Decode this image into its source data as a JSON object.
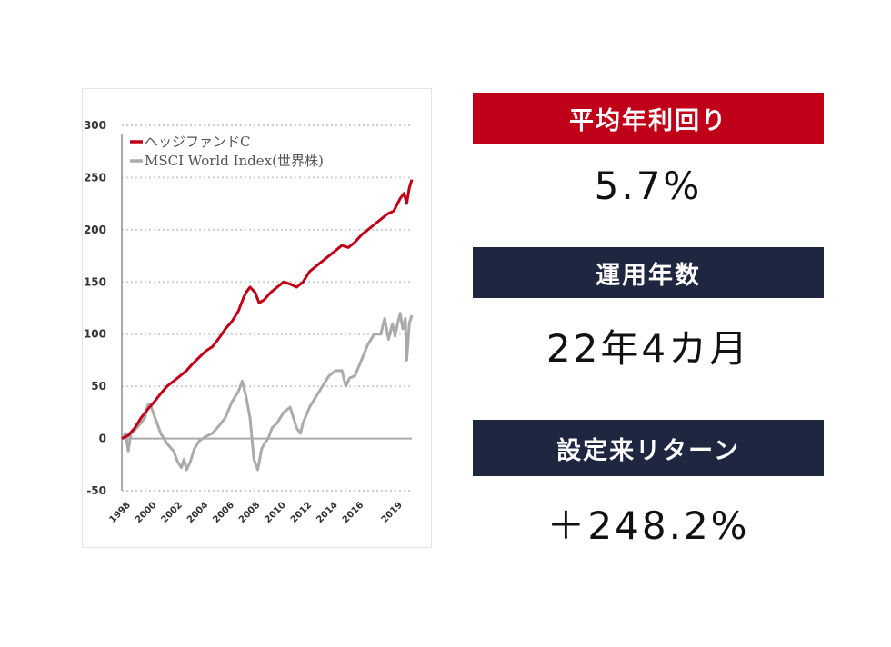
{
  "colors": {
    "accent_red": "#c00018",
    "accent_navy": "#1f2640",
    "series_hedge": "#c00018",
    "series_msci": "#aaaaaa",
    "grid": "#cfcfcf"
  },
  "stats": [
    {
      "label": "平均年利回り",
      "value": "5.7%",
      "color": "#c00018"
    },
    {
      "label": "運用年数",
      "value": "22年4カ月",
      "color": "#1f2640"
    },
    {
      "label": "設定来リターン",
      "value": "＋248.2%",
      "color": "#1f2640"
    }
  ],
  "chart_data": {
    "type": "line",
    "title": "",
    "xlabel": "",
    "ylabel": "",
    "ylim": [
      -50,
      300
    ],
    "yticks": [
      300,
      250,
      200,
      150,
      100,
      50,
      0,
      -50
    ],
    "xlim": [
      1998.0,
      2020.4
    ],
    "xticks": [
      "1998",
      "2000",
      "2002",
      "2004",
      "2006",
      "2008",
      "2010",
      "2012",
      "2014",
      "2016",
      "2019"
    ],
    "xtick_values": [
      1998,
      2000,
      2002,
      2004,
      2006,
      2008,
      2010,
      2012,
      2014,
      2016,
      2019
    ],
    "grid": true,
    "legend": "top-left",
    "series": [
      {
        "name": "ヘッジファンドC",
        "color": "#c00018",
        "x": [
          1998.0,
          1998.5,
          1999.0,
          1999.5,
          2000.0,
          2000.5,
          2001.0,
          2001.5,
          2002.0,
          2002.5,
          2003.0,
          2003.5,
          2004.0,
          2004.5,
          2005.0,
          2005.5,
          2006.0,
          2006.5,
          2007.0,
          2007.4,
          2007.6,
          2007.9,
          2008.3,
          2008.6,
          2009.0,
          2009.5,
          2010.0,
          2010.5,
          2011.0,
          2011.5,
          2012.0,
          2012.5,
          2013.0,
          2013.5,
          2014.0,
          2014.5,
          2015.0,
          2015.5,
          2016.0,
          2016.5,
          2017.0,
          2017.5,
          2018.0,
          2018.5,
          2019.0,
          2019.3,
          2019.5,
          2019.8,
          2020.0,
          2020.2,
          2020.4
        ],
        "values": [
          0,
          3,
          10,
          20,
          28,
          35,
          43,
          50,
          55,
          60,
          65,
          72,
          78,
          84,
          88,
          96,
          105,
          112,
          122,
          135,
          140,
          145,
          140,
          130,
          133,
          140,
          145,
          150,
          148,
          145,
          150,
          160,
          165,
          170,
          175,
          180,
          185,
          183,
          188,
          195,
          200,
          205,
          210,
          215,
          218,
          225,
          230,
          235,
          225,
          240,
          248
        ]
      },
      {
        "name": "MSCI World Index(世界株)",
        "color": "#aaaaaa",
        "x": [
          1998.0,
          1998.3,
          1998.5,
          1998.7,
          1999.0,
          1999.5,
          1999.8,
          2000.0,
          2000.2,
          2000.5,
          2000.8,
          2001.0,
          2001.5,
          2002.0,
          2002.3,
          2002.6,
          2002.8,
          2003.0,
          2003.3,
          2003.6,
          2004.0,
          2004.5,
          2005.0,
          2005.5,
          2006.0,
          2006.5,
          2007.0,
          2007.3,
          2007.6,
          2007.9,
          2008.2,
          2008.5,
          2008.8,
          2009.0,
          2009.3,
          2009.6,
          2010.0,
          2010.5,
          2011.0,
          2011.5,
          2011.8,
          2012.0,
          2012.5,
          2013.0,
          2013.5,
          2014.0,
          2014.5,
          2015.0,
          2015.3,
          2015.6,
          2016.0,
          2016.5,
          2017.0,
          2017.5,
          2018.0,
          2018.3,
          2018.6,
          2018.9,
          2019.1,
          2019.3,
          2019.5,
          2019.7,
          2019.9,
          2020.0,
          2020.1,
          2020.2,
          2020.4
        ],
        "values": [
          0,
          5,
          -12,
          5,
          8,
          15,
          20,
          32,
          33,
          22,
          12,
          5,
          -5,
          -12,
          -22,
          -28,
          -20,
          -30,
          -22,
          -10,
          -2,
          2,
          5,
          12,
          20,
          35,
          45,
          55,
          40,
          20,
          -20,
          -30,
          -10,
          -5,
          0,
          10,
          15,
          25,
          30,
          10,
          5,
          15,
          30,
          40,
          50,
          60,
          65,
          65,
          50,
          58,
          60,
          75,
          90,
          100,
          100,
          115,
          95,
          110,
          98,
          110,
          120,
          105,
          115,
          75,
          90,
          110,
          118
        ]
      }
    ]
  }
}
